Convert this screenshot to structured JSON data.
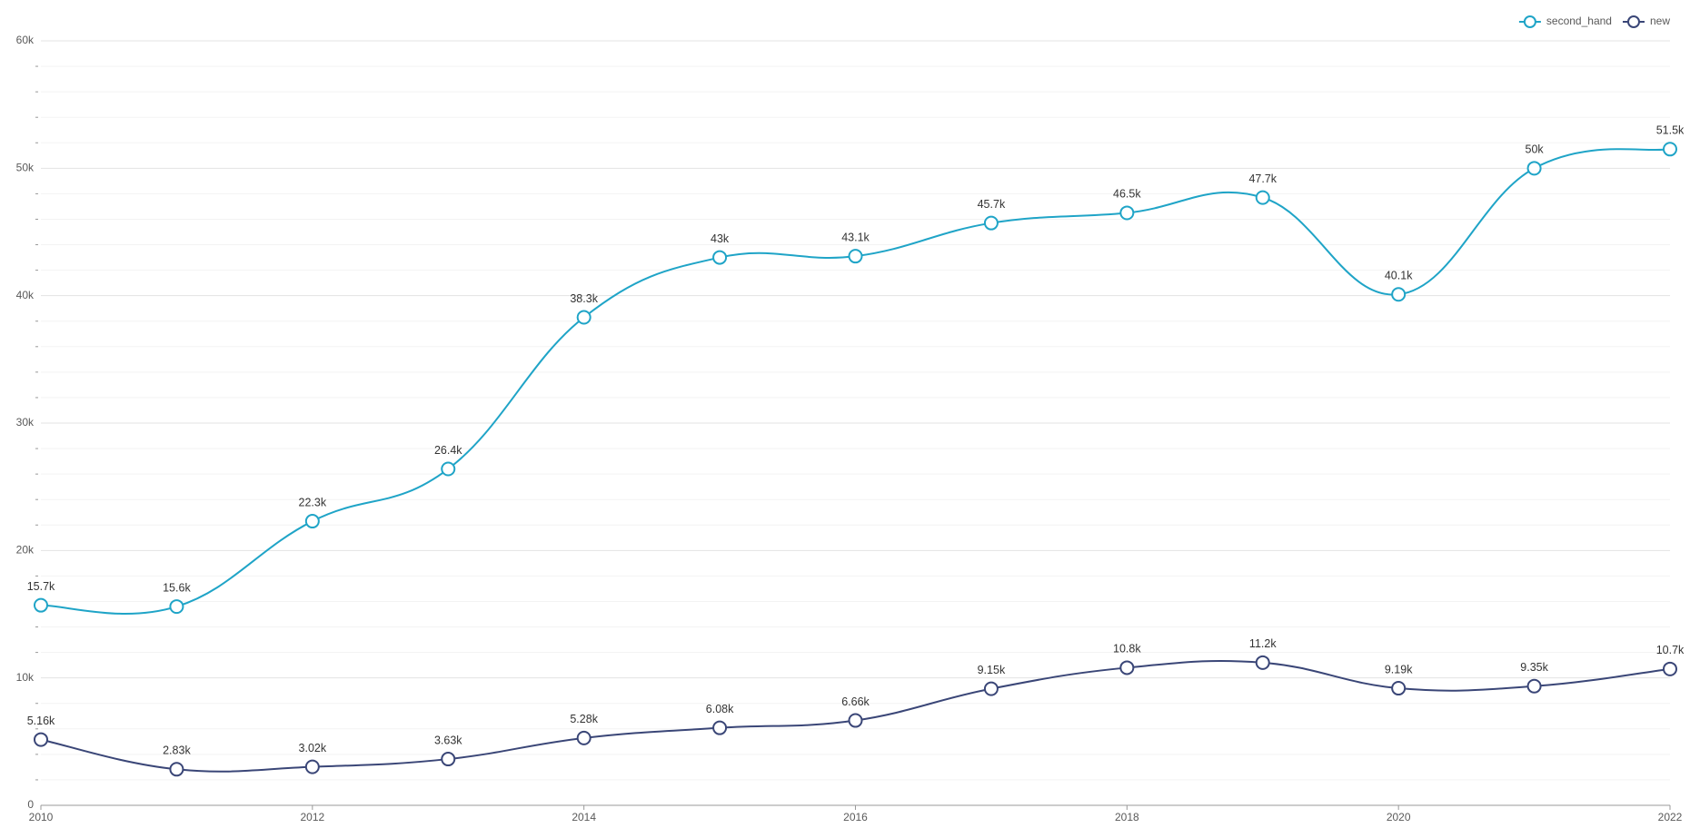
{
  "chart_data": {
    "type": "line",
    "x": [
      2010,
      2011,
      2012,
      2013,
      2014,
      2015,
      2016,
      2017,
      2018,
      2019,
      2020,
      2021,
      2022
    ],
    "xlim": [
      2010,
      2022
    ],
    "xticks": [
      2010,
      2012,
      2014,
      2016,
      2018,
      2020,
      2022
    ],
    "ylim": [
      0,
      60000
    ],
    "yticks": [
      0,
      {
        "value": 10000,
        "label": "10k"
      },
      {
        "value": 20000,
        "label": "20k"
      },
      {
        "value": 30000,
        "label": "30k"
      },
      {
        "value": 40000,
        "label": "40k"
      },
      {
        "value": 50000,
        "label": "50k"
      },
      {
        "value": 60000,
        "label": "60k"
      }
    ],
    "grid": true,
    "legend": "top-right",
    "series": [
      {
        "name": "second_hand",
        "color": "#1fa4c7",
        "values": [
          15700,
          15600,
          22300,
          26400,
          38300,
          43000,
          43100,
          45700,
          46500,
          47700,
          40100,
          50000,
          51500
        ],
        "value_labels": [
          "15.7k",
          "15.6k",
          "22.3k",
          "26.4k",
          "38.3k",
          "43k",
          "43.1k",
          "45.7k",
          "46.5k",
          "47.7k",
          "40.1k",
          "50k",
          "51.5k"
        ]
      },
      {
        "name": "new",
        "color": "#3a4677",
        "values": [
          5160,
          2830,
          3020,
          3630,
          5280,
          6080,
          6660,
          9150,
          10800,
          11200,
          9190,
          9350,
          10700
        ],
        "value_labels": [
          "5.16k",
          "2.83k",
          "3.02k",
          "3.63k",
          "5.28k",
          "6.08k",
          "6.66k",
          "9.15k",
          "10.8k",
          "11.2k",
          "9.19k",
          "9.35k",
          "10.7k"
        ]
      }
    ]
  }
}
